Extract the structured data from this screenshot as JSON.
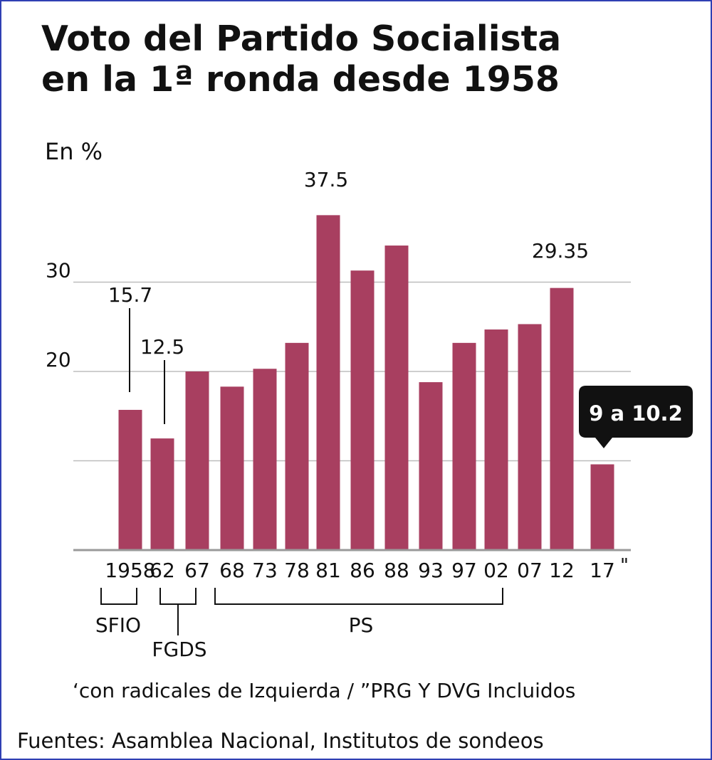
{
  "chart_data": {
    "type": "bar",
    "title_lines": [
      "Voto del Partido Socialista",
      "en la 1ª ronda desde 1958"
    ],
    "ylabel": "En %",
    "ylim": [
      0,
      40
    ],
    "yticks": [
      10,
      20,
      30
    ],
    "ytick_labels": [
      "",
      "20",
      "30"
    ],
    "grid": true,
    "bar_color": "#a83f60",
    "grid_color": "#bdbdbd",
    "categories": [
      "1958",
      "62",
      "67",
      "68",
      "73",
      "78",
      "81",
      "86",
      "88",
      "93",
      "97",
      "02",
      "07",
      "12",
      "17"
    ],
    "values": [
      15.7,
      12.5,
      20.0,
      18.3,
      20.3,
      23.2,
      37.5,
      31.3,
      34.1,
      18.8,
      23.2,
      24.7,
      25.3,
      29.35,
      9.6
    ],
    "data_labels": [
      {
        "index": 0,
        "text": "15.7"
      },
      {
        "index": 1,
        "text": "12.5"
      },
      {
        "index": 6,
        "text": "37.5"
      },
      {
        "index": 13,
        "text": "29.35"
      }
    ],
    "callout": {
      "index": 14,
      "text": "9 a 10.2"
    },
    "last_tick_mark": "\"",
    "groups": [
      {
        "label": "SFIO",
        "from": 0,
        "to": 0
      },
      {
        "label": "FGDS",
        "from": 1,
        "to": 2
      },
      {
        "label": "PS",
        "from": 3,
        "to": 11
      }
    ],
    "footnote": "‘con radicales de Izquierda / ”PRG Y DVG Incluidos",
    "source": "Fuentes: Asamblea Nacional, Institutos de sondeos"
  }
}
